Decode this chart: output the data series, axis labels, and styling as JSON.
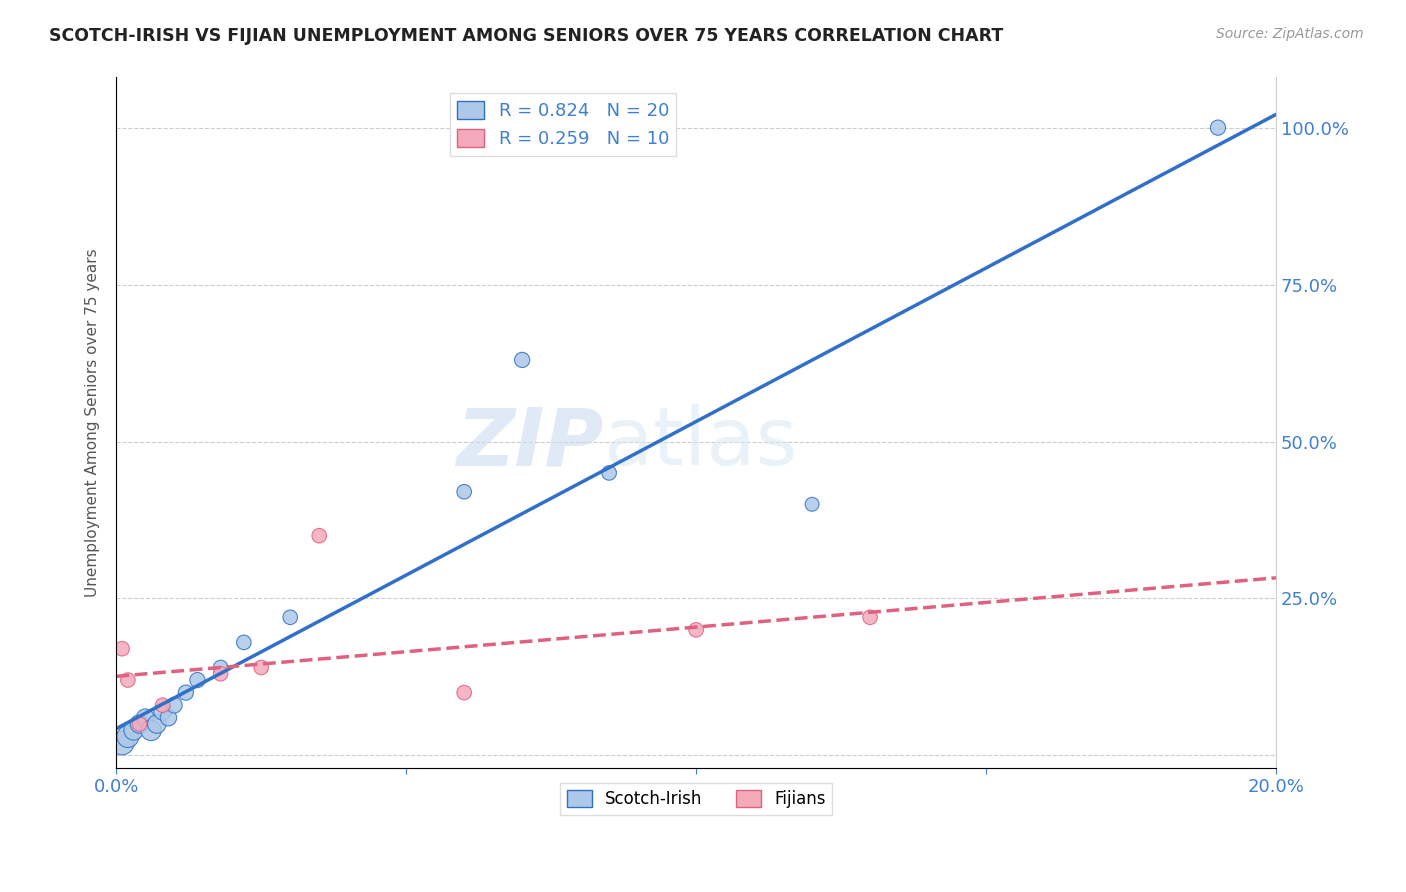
{
  "title": "SCOTCH-IRISH VS FIJIAN UNEMPLOYMENT AMONG SENIORS OVER 75 YEARS CORRELATION CHART",
  "source": "Source: ZipAtlas.com",
  "ylabel": "Unemployment Among Seniors over 75 years",
  "xlim": [
    0.0,
    0.2
  ],
  "ylim": [
    -0.02,
    1.08
  ],
  "x_ticks": [
    0.0,
    0.05,
    0.1,
    0.15,
    0.2
  ],
  "x_tick_labels": [
    "0.0%",
    "",
    "",
    "",
    "20.0%"
  ],
  "y_ticks": [
    0.0,
    0.25,
    0.5,
    0.75,
    1.0
  ],
  "y_tick_labels": [
    "",
    "25.0%",
    "50.0%",
    "75.0%",
    "100.0%"
  ],
  "scotch_irish_x": [
    0.001,
    0.002,
    0.003,
    0.004,
    0.005,
    0.006,
    0.007,
    0.008,
    0.009,
    0.01,
    0.012,
    0.014,
    0.018,
    0.022,
    0.03,
    0.06,
    0.07,
    0.085,
    0.12,
    0.19
  ],
  "scotch_irish_y": [
    0.02,
    0.03,
    0.04,
    0.05,
    0.06,
    0.04,
    0.05,
    0.07,
    0.06,
    0.08,
    0.1,
    0.12,
    0.14,
    0.18,
    0.22,
    0.42,
    0.63,
    0.45,
    0.4,
    1.0
  ],
  "scotch_irish_size": [
    300,
    250,
    200,
    180,
    160,
    220,
    180,
    160,
    140,
    130,
    120,
    120,
    110,
    110,
    110,
    110,
    120,
    110,
    100,
    120
  ],
  "fijian_x": [
    0.001,
    0.002,
    0.004,
    0.008,
    0.018,
    0.025,
    0.035,
    0.06,
    0.1,
    0.13
  ],
  "fijian_y": [
    0.17,
    0.12,
    0.05,
    0.08,
    0.13,
    0.14,
    0.35,
    0.1,
    0.2,
    0.22
  ],
  "fijian_size": [
    110,
    110,
    110,
    110,
    110,
    110,
    110,
    110,
    110,
    110
  ],
  "scotch_irish_color": "#adc8e8",
  "fijian_color": "#f5aabb",
  "scotch_irish_line_color": "#3070c8",
  "fijian_line_color": "#e06080",
  "scotch_irish_R": 0.824,
  "scotch_irish_N": 20,
  "fijian_R": 0.259,
  "fijian_N": 10,
  "watermark_zip": "ZIP",
  "watermark_atlas": "atlas",
  "background_color": "#ffffff",
  "grid_color": "#cccccc",
  "right_axis_color": "#4080d0"
}
